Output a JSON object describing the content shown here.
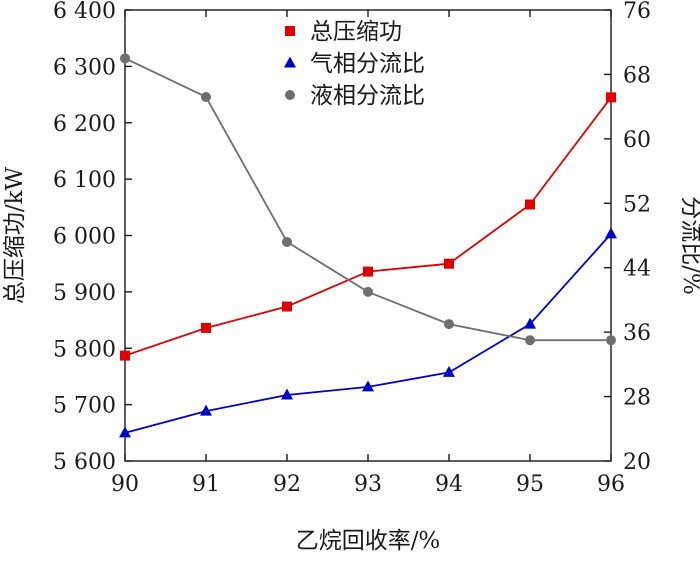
{
  "chart_data": {
    "type": "line",
    "xlabel": "乙烷回收率/%",
    "ylabel_left": "总压缩功/kW",
    "ylabel_right": "分流比/%",
    "x": [
      90,
      91,
      92,
      93,
      94,
      95,
      96
    ],
    "x_tick_labels": [
      "90",
      "91",
      "92",
      "93",
      "94",
      "95",
      "96"
    ],
    "xlim": [
      90,
      96
    ],
    "ylim_left": [
      5600,
      6400
    ],
    "ylim_right": [
      20,
      76
    ],
    "y_left_tick_labels": [
      "5 600",
      "5 700",
      "5 800",
      "5 900",
      "6 000",
      "6 100",
      "6 200",
      "6 300",
      "6 400"
    ],
    "y_right_tick_labels": [
      "20",
      "28",
      "36",
      "44",
      "52",
      "60",
      "68",
      "76"
    ],
    "grid": false,
    "legend_position": "top-center",
    "series": [
      {
        "name": "总压缩功",
        "axis": "left",
        "color": "#e00000",
        "marker": "square",
        "values": [
          5787,
          5836,
          5874,
          5936,
          5950,
          6055,
          6245
        ]
      },
      {
        "name": "气相分流比",
        "axis": "right",
        "color": "#0000cc",
        "marker": "triangle",
        "values": [
          23.5,
          26.2,
          28.2,
          29.2,
          31.0,
          37.0,
          48.2
        ]
      },
      {
        "name": "液相分流比",
        "axis": "right",
        "color": "#6e6e6e",
        "marker": "circle",
        "values": [
          70.0,
          65.2,
          47.2,
          41.0,
          37.0,
          35.0,
          35.0
        ]
      }
    ]
  }
}
